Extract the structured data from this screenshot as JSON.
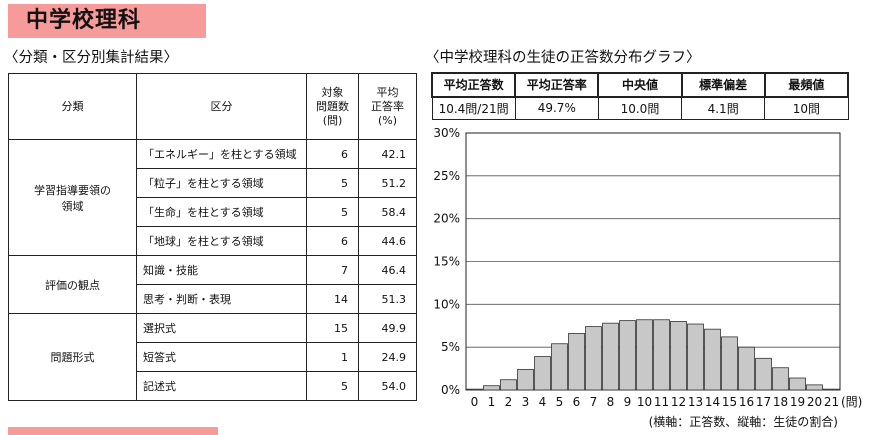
{
  "title": "中学校理科",
  "left_section_title": "〈分類・区分別集計結果〉",
  "right_section_title": "〈中学校理科の生徒の正答数分布グラフ〉",
  "table": {
    "headers": {
      "category": "分類",
      "division": "区分",
      "count": [
        "対象",
        "問題数",
        "(問)"
      ],
      "rate": [
        "平均",
        "正答率",
        "(%)"
      ]
    },
    "groups": [
      {
        "name": [
          "学習指導要領の",
          "領域"
        ],
        "rows": [
          {
            "label": "「エネルギー」を柱とする領域",
            "count": "6",
            "rate": "42.1"
          },
          {
            "label": "「粒子」を柱とする領域",
            "count": "5",
            "rate": "51.2"
          },
          {
            "label": "「生命」を柱とする領域",
            "count": "5",
            "rate": "58.4"
          },
          {
            "label": "「地球」を柱とする領域",
            "count": "6",
            "rate": "44.6"
          }
        ]
      },
      {
        "name": [
          "評価の観点"
        ],
        "rows": [
          {
            "label": "知識・技能",
            "count": "7",
            "rate": "46.4"
          },
          {
            "label": "思考・判断・表現",
            "count": "14",
            "rate": "51.3"
          }
        ]
      },
      {
        "name": [
          "問題形式"
        ],
        "rows": [
          {
            "label": "選択式",
            "count": "15",
            "rate": "49.9"
          },
          {
            "label": "短答式",
            "count": "1",
            "rate": "24.9"
          },
          {
            "label": "記述式",
            "count": "5",
            "rate": "54.0"
          }
        ]
      }
    ]
  },
  "stats": {
    "headers": [
      "平均正答数",
      "平均正答率",
      "中央値",
      "標準偏差",
      "最頻値"
    ],
    "values": [
      "10.4問/21問",
      "49.7%",
      "10.0問",
      "4.1問",
      "10問"
    ]
  },
  "chart_data": {
    "type": "bar",
    "categories": [
      "0",
      "1",
      "2",
      "3",
      "4",
      "5",
      "6",
      "7",
      "8",
      "9",
      "10",
      "11",
      "12",
      "13",
      "14",
      "15",
      "16",
      "17",
      "18",
      "19",
      "20",
      "21"
    ],
    "values": [
      0.1,
      0.5,
      1.2,
      2.4,
      3.9,
      5.4,
      6.6,
      7.4,
      7.8,
      8.1,
      8.2,
      8.2,
      8.0,
      7.7,
      7.1,
      6.2,
      5.0,
      3.7,
      2.6,
      1.4,
      0.6,
      0.1
    ],
    "yticks": [
      "0%",
      "5%",
      "10%",
      "15%",
      "20%",
      "25%",
      "30%"
    ],
    "ylim": [
      0,
      30
    ],
    "x_unit": "(問)",
    "caption": "(横軸：正答数、縦軸：生徒の割合)",
    "grid": true,
    "bar_color": "#c8c8c8"
  }
}
